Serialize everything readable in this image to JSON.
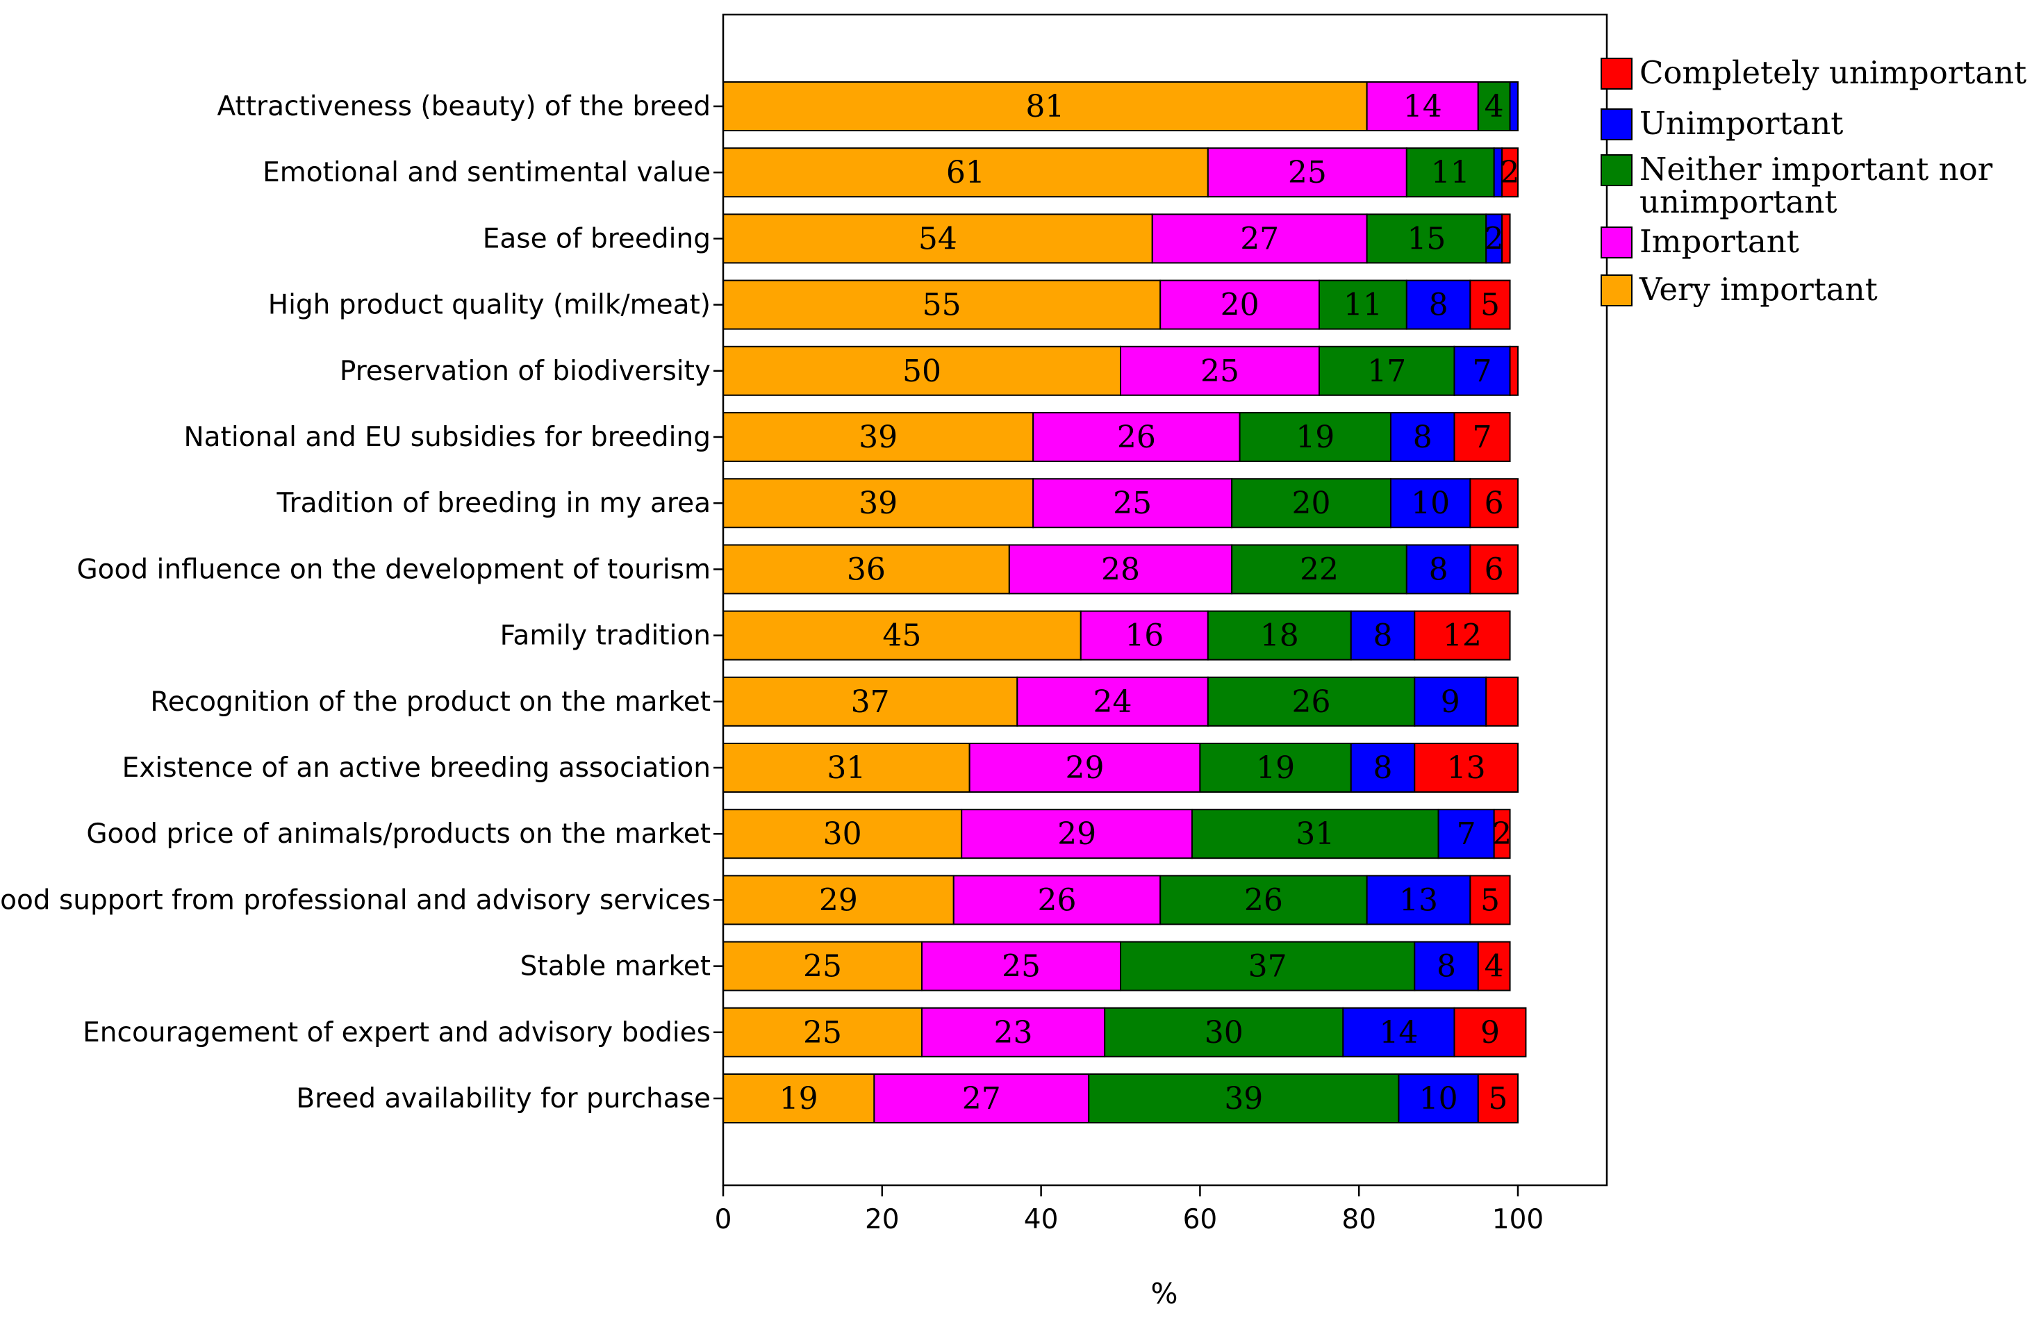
{
  "chart_data": {
    "type": "bar",
    "orientation": "horizontal",
    "stacked": true,
    "xlabel": "%",
    "ylabel": "",
    "xlim": [
      0,
      110
    ],
    "xticks": [
      0,
      20,
      40,
      60,
      80,
      100
    ],
    "grid": false,
    "legend_position": "top-right",
    "legend": [
      "Completely unimportant",
      "Unimportant",
      "Neither important nor unimportant",
      "Important",
      "Very important"
    ],
    "legend_display": [
      [
        "Completely unimportant"
      ],
      [
        "Unimportant"
      ],
      [
        "Neither important nor",
        "unimportant"
      ],
      [
        "Important"
      ],
      [
        "Very important"
      ]
    ],
    "categories": [
      "Attractiveness (beauty) of the breed",
      "Emotional and sentimental value",
      "Ease of breeding",
      "High product quality (milk/meat)",
      "Preservation of biodiversity",
      "National and EU subsidies for breeding",
      "Tradition of breeding in my area",
      "Good influence on the development of tourism",
      "Family tradition",
      "Recognition of the product on the market",
      "Existence of an active breeding association",
      "Good price of animals/products on the market",
      "Good support from professional and advisory services",
      "Stable market",
      "Encouragement of expert and advisory bodies",
      "Breed availability for purchase"
    ],
    "series": [
      {
        "name": "Very important",
        "color": "#FFA500",
        "values": [
          81,
          61,
          54,
          55,
          50,
          39,
          39,
          36,
          45,
          37,
          31,
          30,
          29,
          25,
          25,
          19
        ],
        "labels": [
          "81",
          "61",
          "54",
          "55",
          "50",
          "39",
          "39",
          "36",
          "45",
          "37",
          "31",
          "30",
          "29",
          "25",
          "25",
          "19"
        ]
      },
      {
        "name": "Important",
        "color": "#FF00FF",
        "values": [
          14,
          25,
          27,
          20,
          25,
          26,
          25,
          28,
          16,
          24,
          29,
          29,
          26,
          25,
          23,
          27
        ],
        "labels": [
          "14",
          "25",
          "27",
          "20",
          "25",
          "26",
          "25",
          "28",
          "16",
          "24",
          "29",
          "29",
          "26",
          "25",
          "23",
          "27"
        ]
      },
      {
        "name": "Neither important nor unimportant",
        "color": "#008000",
        "values": [
          4,
          11,
          15,
          11,
          17,
          19,
          20,
          22,
          18,
          26,
          19,
          31,
          26,
          37,
          30,
          39
        ],
        "labels": [
          "4",
          "11",
          "15",
          "11",
          "17",
          "19",
          "20",
          "22",
          "18",
          "26",
          "19",
          "31",
          "26",
          "37",
          "30",
          "39"
        ]
      },
      {
        "name": "Unimportant",
        "color": "#0000FF",
        "values": [
          1,
          1,
          2,
          8,
          7,
          8,
          10,
          8,
          8,
          9,
          8,
          7,
          13,
          8,
          14,
          10
        ],
        "labels": [
          "",
          "",
          "2",
          "8",
          "7",
          "8",
          "10",
          "8",
          "8",
          "9",
          "8",
          "7",
          "13",
          "8",
          "14",
          "10"
        ]
      },
      {
        "name": "Completely unimportant",
        "color": "#FF0000",
        "values": [
          0,
          2,
          1,
          5,
          1,
          7,
          6,
          6,
          12,
          4,
          13,
          2,
          5,
          4,
          9,
          5
        ],
        "labels": [
          "",
          "2",
          "",
          "5",
          "",
          "7",
          "6",
          "6",
          "12",
          "",
          "13",
          "2",
          "5",
          "4",
          "9",
          "5"
        ]
      }
    ]
  }
}
